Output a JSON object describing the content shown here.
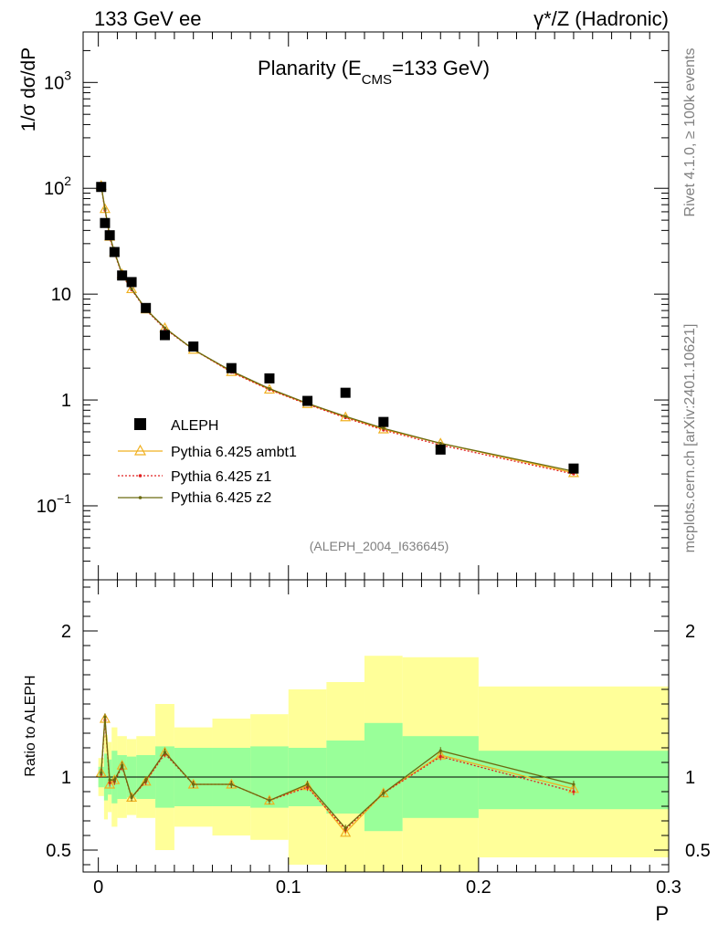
{
  "header": {
    "left_label": "133 GeV ee",
    "right_label": "γ*/Z (Hadronic)"
  },
  "side_labels": {
    "rivet": "Rivet 4.1.0, ≥ 100k events",
    "mcplots": "mcplots.cern.ch [arXiv:2401.10621]"
  },
  "chart_data": [
    {
      "id": "main",
      "type": "scatter",
      "title_main": "Planarity (E",
      "title_sub": "CMS",
      "title_rest": "=133 GeV)",
      "ylabel": "1/σ  dσ/dP",
      "yscale": "log",
      "ylim": [
        0.02,
        3000
      ],
      "xlim": [
        -0.008,
        0.3
      ],
      "analysis_tag": "(ALEPH_2004_I636645)",
      "y_ticks": [
        {
          "value": 1000,
          "label": "10",
          "exp": "3"
        },
        {
          "value": 100,
          "label": "10",
          "exp": "2"
        },
        {
          "value": 10,
          "label": "10",
          "exp": ""
        },
        {
          "value": 1,
          "label": "1",
          "exp": ""
        },
        {
          "value": 0.1,
          "label": "10",
          "exp": "−1"
        }
      ],
      "legend": [
        {
          "label": "ALEPH",
          "color": "#000000",
          "marker": "square"
        },
        {
          "label": "Pythia 6.425 ambt1",
          "color": "#f0b020",
          "marker": "triangle"
        },
        {
          "label": "Pythia 6.425 z1",
          "color": "#e02020",
          "marker": "dot"
        },
        {
          "label": "Pythia 6.425 z2",
          "color": "#6b6b10",
          "marker": "dot"
        }
      ],
      "data": {
        "x": [
          0.0015,
          0.0035,
          0.006,
          0.0085,
          0.0125,
          0.0175,
          0.025,
          0.035,
          0.05,
          0.07,
          0.09,
          0.11,
          0.13,
          0.15,
          0.18,
          0.25
        ],
        "aleph": [
          103,
          47,
          36,
          25,
          15,
          13,
          7.4,
          4.1,
          3.2,
          2.0,
          1.6,
          0.98,
          1.17,
          0.62,
          0.34,
          0.225
        ],
        "ambt1": [
          106,
          64,
          35,
          25,
          15.5,
          11.2,
          7.2,
          4.8,
          3.0,
          1.85,
          1.26,
          0.92,
          0.69,
          0.53,
          0.39,
          0.205
        ],
        "z1": [
          105,
          62,
          34,
          24.5,
          15.2,
          11.0,
          7.1,
          4.7,
          3.0,
          1.83,
          1.25,
          0.91,
          0.68,
          0.52,
          0.375,
          0.2
        ],
        "z2": [
          105,
          64,
          36,
          25,
          15.5,
          11.2,
          7.2,
          4.8,
          3.0,
          1.88,
          1.28,
          0.93,
          0.7,
          0.54,
          0.39,
          0.212
        ]
      }
    },
    {
      "id": "ratio",
      "type": "line",
      "ylabel": "Ratio to ALEPH",
      "xlabel": "P",
      "ylim": [
        0.35,
        2.35
      ],
      "xlim": [
        -0.008,
        0.3
      ],
      "x_ticks": [
        {
          "value": 0,
          "label": "0"
        },
        {
          "value": 0.1,
          "label": "0.1"
        },
        {
          "value": 0.2,
          "label": "0.2"
        },
        {
          "value": 0.3,
          "label": "0.3"
        }
      ],
      "y_ticks": [
        {
          "value": 2,
          "label": "2"
        },
        {
          "value": 1,
          "label": "1"
        },
        {
          "value": 0.5,
          "label": "0.5"
        }
      ],
      "bands": [
        {
          "x0": 0.0,
          "x1": 0.003,
          "g_lo": 0.93,
          "g_hi": 1.07,
          "y_lo": 0.87,
          "y_hi": 1.13
        },
        {
          "x0": 0.003,
          "x1": 0.005,
          "g_lo": 0.84,
          "g_hi": 1.16,
          "y_lo": 0.71,
          "y_hi": 1.29
        },
        {
          "x0": 0.005,
          "x1": 0.007,
          "g_lo": 0.88,
          "g_hi": 1.12,
          "y_lo": 0.76,
          "y_hi": 1.24
        },
        {
          "x0": 0.007,
          "x1": 0.01,
          "g_lo": 0.82,
          "g_hi": 1.18,
          "y_lo": 0.66,
          "y_hi": 1.34
        },
        {
          "x0": 0.01,
          "x1": 0.015,
          "g_lo": 0.85,
          "g_hi": 1.15,
          "y_lo": 0.72,
          "y_hi": 1.28
        },
        {
          "x0": 0.015,
          "x1": 0.02,
          "g_lo": 0.86,
          "g_hi": 1.14,
          "y_lo": 0.74,
          "y_hi": 1.26
        },
        {
          "x0": 0.02,
          "x1": 0.03,
          "g_lo": 0.85,
          "g_hi": 1.15,
          "y_lo": 0.72,
          "y_hi": 1.28
        },
        {
          "x0": 0.03,
          "x1": 0.04,
          "g_lo": 0.79,
          "g_hi": 1.21,
          "y_lo": 0.5,
          "y_hi": 1.5
        },
        {
          "x0": 0.04,
          "x1": 0.06,
          "g_lo": 0.8,
          "g_hi": 1.2,
          "y_lo": 0.66,
          "y_hi": 1.34
        },
        {
          "x0": 0.06,
          "x1": 0.08,
          "g_lo": 0.8,
          "g_hi": 1.2,
          "y_lo": 0.6,
          "y_hi": 1.4
        },
        {
          "x0": 0.08,
          "x1": 0.1,
          "g_lo": 0.79,
          "g_hi": 1.21,
          "y_lo": 0.57,
          "y_hi": 1.43
        },
        {
          "x0": 0.1,
          "x1": 0.12,
          "g_lo": 0.8,
          "g_hi": 1.2,
          "y_lo": 0.4,
          "y_hi": 1.6
        },
        {
          "x0": 0.12,
          "x1": 0.14,
          "g_lo": 0.75,
          "g_hi": 1.25,
          "y_lo": 0.35,
          "y_hi": 1.65
        },
        {
          "x0": 0.14,
          "x1": 0.16,
          "g_lo": 0.63,
          "g_hi": 1.37,
          "y_lo": 0.35,
          "y_hi": 1.83
        },
        {
          "x0": 0.16,
          "x1": 0.2,
          "g_lo": 0.72,
          "g_hi": 1.28,
          "y_lo": 0.35,
          "y_hi": 1.82
        },
        {
          "x0": 0.2,
          "x1": 0.3,
          "g_lo": 0.78,
          "g_hi": 1.18,
          "y_lo": 0.45,
          "y_hi": 1.62
        }
      ],
      "series": [
        {
          "name": "ambt1",
          "values": [
            1.03,
            1.4,
            0.95,
            0.98,
            1.08,
            0.86,
            0.97,
            1.17,
            0.95,
            0.95,
            0.84,
            0.94,
            0.62,
            0.89,
            1.15,
            0.92
          ]
        },
        {
          "name": "z1",
          "values": [
            1.02,
            1.39,
            0.96,
            0.97,
            1.07,
            0.86,
            0.97,
            1.16,
            0.95,
            0.95,
            0.84,
            0.93,
            0.64,
            0.89,
            1.14,
            0.9
          ]
        },
        {
          "name": "z2",
          "values": [
            1.03,
            1.41,
            0.98,
            0.98,
            1.08,
            0.86,
            0.98,
            1.17,
            0.95,
            0.95,
            0.84,
            0.95,
            0.65,
            0.89,
            1.18,
            0.95
          ]
        }
      ]
    }
  ]
}
